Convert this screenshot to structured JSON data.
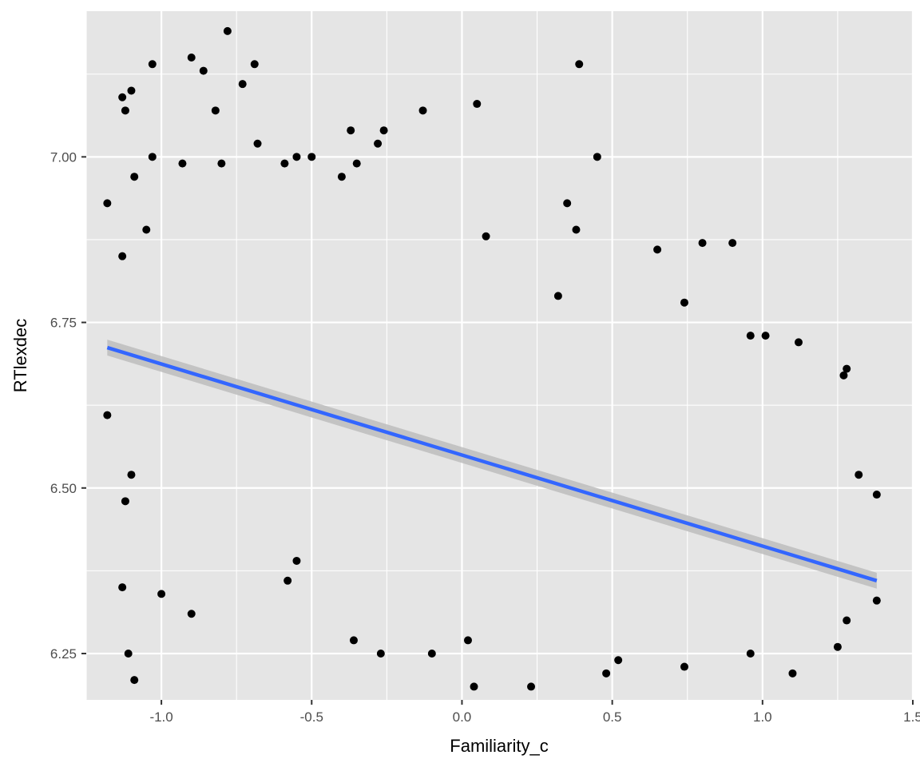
{
  "chart_data": {
    "type": "scatter",
    "title": "",
    "xlabel": "Familiarity_c",
    "ylabel": "RTlexdec",
    "xlim": [
      -1.25,
      1.5
    ],
    "ylim": [
      6.18,
      7.22
    ],
    "x_ticks": [
      -1.0,
      -0.5,
      0.0,
      0.5,
      1.0,
      1.5
    ],
    "x_tick_labels": [
      "-1.0",
      "-0.5",
      "0.0",
      "0.5",
      "1.0",
      "1.5"
    ],
    "y_ticks": [
      6.25,
      6.5,
      6.75,
      7.0
    ],
    "y_tick_labels": [
      "6.25",
      "6.50",
      "6.75",
      "7.00"
    ],
    "grid": true,
    "colors": {
      "panel": "#e5e5e5",
      "grid": "#ffffff",
      "points": "#000000",
      "fit_line": "#3366ff",
      "ci_band": "#bdbdbd"
    },
    "series": [
      {
        "points": [
          [
            -1.18,
            6.93
          ],
          [
            -1.18,
            6.61
          ],
          [
            -1.13,
            7.09
          ],
          [
            -1.12,
            7.07
          ],
          [
            -1.1,
            7.1
          ],
          [
            -1.03,
            7.14
          ],
          [
            -0.9,
            7.15
          ],
          [
            -0.86,
            7.13
          ],
          [
            -0.78,
            7.19
          ],
          [
            -0.69,
            7.14
          ],
          [
            -0.73,
            7.11
          ],
          [
            -0.82,
            7.07
          ],
          [
            -1.03,
            7.0
          ],
          [
            -0.55,
            7.0
          ],
          [
            -0.5,
            7.0
          ],
          [
            -0.37,
            7.04
          ],
          [
            -0.26,
            7.04
          ],
          [
            -0.28,
            7.02
          ],
          [
            -0.13,
            7.07
          ],
          [
            0.05,
            7.08
          ],
          [
            0.39,
            7.14
          ],
          [
            0.45,
            7.0
          ],
          [
            -0.68,
            7.02
          ],
          [
            -0.59,
            6.99
          ],
          [
            -1.09,
            6.97
          ],
          [
            -0.93,
            6.99
          ],
          [
            -0.8,
            6.99
          ],
          [
            -0.35,
            6.99
          ],
          [
            -0.4,
            6.97
          ],
          [
            0.35,
            6.93
          ],
          [
            0.38,
            6.89
          ],
          [
            0.9,
            6.87
          ],
          [
            0.8,
            6.87
          ],
          [
            0.65,
            6.86
          ],
          [
            0.08,
            6.88
          ],
          [
            0.32,
            6.79
          ],
          [
            0.74,
            6.78
          ],
          [
            0.96,
            6.73
          ],
          [
            1.01,
            6.73
          ],
          [
            1.12,
            6.72
          ],
          [
            1.28,
            6.68
          ],
          [
            1.27,
            6.67
          ],
          [
            1.38,
            6.49
          ],
          [
            1.38,
            6.33
          ],
          [
            1.32,
            6.52
          ],
          [
            1.28,
            6.3
          ],
          [
            1.25,
            6.26
          ],
          [
            1.1,
            6.22
          ],
          [
            0.48,
            6.22
          ],
          [
            0.23,
            6.2
          ],
          [
            0.04,
            6.2
          ],
          [
            -1.11,
            6.25
          ],
          [
            -1.09,
            6.21
          ],
          [
            -1.13,
            6.35
          ],
          [
            -0.9,
            6.31
          ],
          [
            -1.0,
            6.34
          ],
          [
            -1.1,
            6.52
          ],
          [
            -1.12,
            6.48
          ],
          [
            -1.13,
            6.85
          ],
          [
            -1.05,
            6.89
          ],
          [
            -0.1,
            6.25
          ],
          [
            -0.27,
            6.25
          ],
          [
            0.02,
            6.27
          ],
          [
            0.52,
            6.24
          ],
          [
            0.74,
            6.23
          ],
          [
            0.96,
            6.25
          ],
          [
            -0.36,
            6.27
          ],
          [
            -0.58,
            6.36
          ],
          [
            -0.55,
            6.39
          ]
        ]
      }
    ],
    "fit": {
      "method": "linear regression with confidence band",
      "x": [
        -1.18,
        1.38
      ],
      "y": [
        6.712,
        6.36
      ],
      "ci_half_width": [
        0.012,
        0.012
      ]
    }
  }
}
